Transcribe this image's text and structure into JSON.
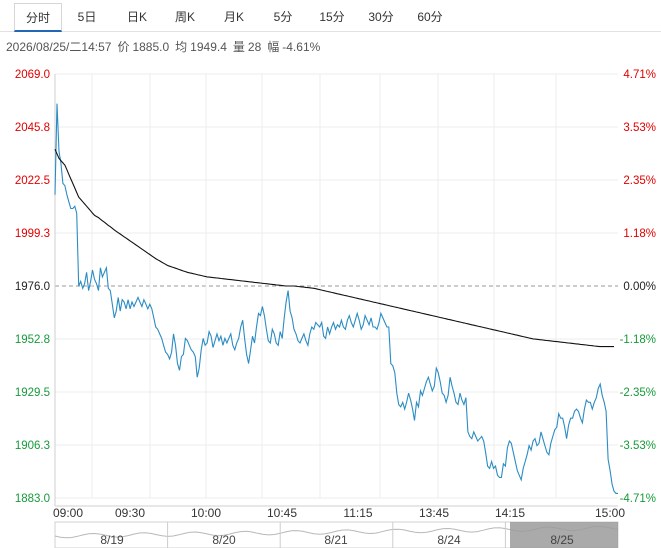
{
  "tabs": [
    {
      "label": "分时"
    },
    {
      "label": "5日"
    },
    {
      "label": "日K"
    },
    {
      "label": "周K"
    },
    {
      "label": "月K"
    },
    {
      "label": "5分"
    },
    {
      "label": "15分"
    },
    {
      "label": "30分"
    },
    {
      "label": "60分"
    }
  ],
  "info": {
    "datetime": "2026/08/25/二14:57",
    "price_label": "价",
    "price": "1885.0",
    "avg_label": "均",
    "avg": "1949.4",
    "vol_label": "量",
    "vol": "28",
    "chg_label": "幅",
    "chg": "-4.61%"
  },
  "colors": {
    "up": "#e00000",
    "down": "#169a3a",
    "flat": "#222222",
    "price_line": "#2b8cc4",
    "avg_line": "#111111",
    "grid": "#ececec",
    "baseline": "#999999"
  },
  "navigator": {
    "labels": [
      "8/19",
      "8/20",
      "8/21",
      "8/24",
      "8/25"
    ],
    "selected": "8/25"
  },
  "chart_data": {
    "type": "line",
    "title": "",
    "prev_close": 1976.0,
    "ylim": [
      1883.0,
      2069.0
    ],
    "y_ticks": [
      "2069.0",
      "2045.8",
      "2022.5",
      "1999.3",
      "1976.0",
      "1952.8",
      "1929.5",
      "1906.3",
      "1883.0"
    ],
    "pct_ticks": [
      "4.71%",
      "3.53%",
      "2.35%",
      "1.18%",
      "0.00%",
      "-1.18%",
      "-2.35%",
      "-3.53%",
      "-4.71%"
    ],
    "x_ticks": [
      "09:00",
      "09:30",
      "10:00",
      "10:45",
      "11:15",
      "13:45",
      "14:15",
      "15:00"
    ],
    "grid": true,
    "series": [
      {
        "name": "",
        "values": [
          2016.0,
          2056.0,
          2035.0,
          2030.0,
          2021.0,
          2020.0,
          2016.0,
          2013.0,
          2010.0,
          2010.0,
          2011.0,
          2008.0,
          1976.0,
          1978.0,
          1975.0,
          1977.0,
          1982.0,
          1974.0,
          1978.0,
          1983.0,
          1979.0,
          1977.0,
          1974.0,
          1984.0,
          1980.0,
          1982.0,
          1984.0,
          1975.0,
          1974.0,
          1968.0,
          1962.0,
          1965.0,
          1971.0,
          1965.0,
          1970.0,
          1969.0,
          1966.0,
          1970.0,
          1966.0,
          1969.0,
          1967.0,
          1969.0,
          1971.0,
          1969.0,
          1967.0,
          1970.0,
          1968.0,
          1966.0,
          1968.0,
          1966.0,
          1962.0,
          1958.0,
          1957.0,
          1955.0,
          1953.0,
          1950.0,
          1947.0,
          1946.0,
          1944.0,
          1947.0,
          1955.0,
          1950.0,
          1942.0,
          1939.0,
          1945.0,
          1946.0,
          1953.0,
          1952.0,
          1950.0,
          1948.0,
          1947.0,
          1945.0,
          1936.0,
          1940.0,
          1948.0,
          1953.0,
          1950.0,
          1951.0,
          1956.0,
          1954.0,
          1949.0,
          1952.0,
          1955.0,
          1952.0,
          1954.0,
          1950.0,
          1953.0,
          1951.0,
          1953.0,
          1955.0,
          1950.0,
          1948.0,
          1951.0,
          1953.0,
          1958.0,
          1961.0,
          1953.0,
          1946.0,
          1942.0,
          1948.0,
          1954.0,
          1951.0,
          1958.0,
          1964.0,
          1963.0,
          1967.0,
          1963.0,
          1957.0,
          1952.0,
          1951.0,
          1957.0,
          1955.0,
          1951.0,
          1950.0,
          1956.0,
          1953.0,
          1962.0,
          1969.0,
          1974.0,
          1965.0,
          1962.0,
          1957.0,
          1955.0,
          1952.0,
          1951.0,
          1953.0,
          1955.0,
          1952.0,
          1950.0,
          1955.0,
          1958.0,
          1957.0,
          1960.0,
          1959.0,
          1958.0,
          1960.0,
          1954.0,
          1953.0,
          1958.0,
          1955.0,
          1958.0,
          1960.0,
          1957.0,
          1959.0,
          1958.0,
          1961.0,
          1958.0,
          1957.0,
          1961.0,
          1963.0,
          1960.0,
          1958.0,
          1961.0,
          1964.0,
          1961.0,
          1957.0,
          1959.0,
          1963.0,
          1961.0,
          1959.0,
          1962.0,
          1958.0,
          1958.0,
          1957.0,
          1960.0,
          1964.0,
          1962.0,
          1960.0,
          1958.0,
          1958.0,
          1942.0,
          1941.0,
          1938.0,
          1929.0,
          1924.0,
          1923.0,
          1925.0,
          1922.0,
          1925.0,
          1929.0,
          1926.0,
          1922.0,
          1917.0,
          1925.0,
          1923.0,
          1930.0,
          1928.0,
          1931.0,
          1934.0,
          1936.0,
          1933.0,
          1930.0,
          1932.0,
          1940.0,
          1938.0,
          1934.0,
          1929.0,
          1928.0,
          1925.0,
          1928.0,
          1936.0,
          1932.0,
          1929.0,
          1925.0,
          1924.0,
          1929.0,
          1926.0,
          1924.0,
          1927.0,
          1912.0,
          1910.0,
          1909.0,
          1912.0,
          1910.0,
          1908.0,
          1909.0,
          1910.0,
          1908.0,
          1903.0,
          1897.0,
          1896.0,
          1899.0,
          1896.0,
          1897.0,
          1893.0,
          1892.0,
          1892.0,
          1898.0,
          1897.0,
          1905.0,
          1908.0,
          1907.0,
          1903.0,
          1899.0,
          1895.0,
          1893.0,
          1891.0,
          1896.0,
          1899.0,
          1902.0,
          1906.0,
          1904.0,
          1908.0,
          1909.0,
          1906.0,
          1907.0,
          1912.0,
          1909.0,
          1906.0,
          1903.0,
          1902.0,
          1907.0,
          1910.0,
          1913.0,
          1914.0,
          1920.0,
          1918.0,
          1918.0,
          1914.0,
          1909.0,
          1915.0,
          1918.0,
          1918.0,
          1921.0,
          1922.0,
          1921.0,
          1918.0,
          1916.0,
          1922.0,
          1926.0,
          1925.0,
          1925.0,
          1922.0,
          1925.0,
          1927.0,
          1931.0,
          1933.0,
          1928.0,
          1925.0,
          1921.0,
          1900.0,
          1895.0,
          1889.0,
          1886.0,
          1885.0,
          1885.0
        ]
      },
      {
        "name": "",
        "values": [
          2036.0,
          2034.0,
          2032.0,
          2031.0,
          2030.0,
          2029.0,
          2027.0,
          2025.0,
          2023.0,
          2021.0,
          2019.0,
          2017.0,
          2015.0,
          2014.0,
          2013.0,
          2012.0,
          2011.0,
          2010.0,
          2009.0,
          2008.0,
          2007.0,
          2006.5,
          2006.0,
          2005.3,
          2004.6,
          2004.0,
          2003.3,
          2002.6,
          2002.0,
          2001.3,
          2000.6,
          2000.0,
          1999.4,
          1998.8,
          1998.2,
          1997.6,
          1997.0,
          1996.4,
          1995.8,
          1995.2,
          1994.6,
          1994.0,
          1993.4,
          1992.8,
          1992.2,
          1991.6,
          1991.0,
          1990.4,
          1989.8,
          1989.2,
          1988.6,
          1988.0,
          1987.5,
          1987.0,
          1986.5,
          1986.0,
          1985.5,
          1985.0,
          1984.7,
          1984.4,
          1984.1,
          1983.8,
          1983.5,
          1983.2,
          1982.9,
          1982.6,
          1982.3,
          1982.0,
          1981.8,
          1981.6,
          1981.4,
          1981.2,
          1981.0,
          1980.8,
          1980.6,
          1980.4,
          1980.2,
          1980.0,
          1979.9,
          1979.8,
          1979.7,
          1979.6,
          1979.5,
          1979.4,
          1979.3,
          1979.2,
          1979.1,
          1979.0,
          1978.9,
          1978.8,
          1978.7,
          1978.6,
          1978.5,
          1978.4,
          1978.3,
          1978.2,
          1978.1,
          1978.0,
          1977.9,
          1977.8,
          1977.7,
          1977.6,
          1977.5,
          1977.4,
          1977.3,
          1977.2,
          1977.1,
          1977.0,
          1976.9,
          1976.8,
          1976.7,
          1976.6,
          1976.5,
          1976.4,
          1976.3,
          1976.2,
          1976.1,
          1976.0,
          1976.0,
          1976.0,
          1976.0,
          1976.0,
          1975.9,
          1975.8,
          1975.7,
          1975.6,
          1975.5,
          1975.4,
          1975.3,
          1975.2,
          1975.1,
          1975.0,
          1974.8,
          1974.6,
          1974.4,
          1974.2,
          1974.0,
          1973.8,
          1973.6,
          1973.4,
          1973.2,
          1973.0,
          1972.8,
          1972.6,
          1972.4,
          1972.2,
          1972.0,
          1971.8,
          1971.6,
          1971.4,
          1971.2,
          1971.0,
          1970.8,
          1970.6,
          1970.4,
          1970.2,
          1970.0,
          1969.8,
          1969.6,
          1969.4,
          1969.2,
          1969.0,
          1968.8,
          1968.6,
          1968.4,
          1968.2,
          1968.0,
          1967.8,
          1967.6,
          1967.4,
          1967.2,
          1967.0,
          1966.8,
          1966.6,
          1966.4,
          1966.2,
          1966.0,
          1965.8,
          1965.6,
          1965.4,
          1965.2,
          1965.0,
          1964.8,
          1964.6,
          1964.4,
          1964.2,
          1964.0,
          1963.8,
          1963.6,
          1963.4,
          1963.2,
          1963.0,
          1962.8,
          1962.6,
          1962.4,
          1962.2,
          1962.0,
          1961.8,
          1961.6,
          1961.4,
          1961.2,
          1961.0,
          1960.8,
          1960.6,
          1960.4,
          1960.2,
          1960.0,
          1959.8,
          1959.6,
          1959.4,
          1959.2,
          1959.0,
          1958.8,
          1958.6,
          1958.4,
          1958.2,
          1958.0,
          1957.8,
          1957.6,
          1957.4,
          1957.2,
          1957.0,
          1956.8,
          1956.6,
          1956.4,
          1956.2,
          1956.0,
          1955.8,
          1955.6,
          1955.4,
          1955.2,
          1955.0,
          1954.8,
          1954.6,
          1954.4,
          1954.2,
          1954.0,
          1953.8,
          1953.6,
          1953.4,
          1953.2,
          1953.0,
          1952.8,
          1952.7,
          1952.6,
          1952.5,
          1952.4,
          1952.3,
          1952.2,
          1952.1,
          1952.0,
          1951.9,
          1951.8,
          1951.7,
          1951.6,
          1951.5,
          1951.4,
          1951.3,
          1951.2,
          1951.1,
          1951.0,
          1950.9,
          1950.8,
          1950.7,
          1950.6,
          1950.5,
          1950.4,
          1950.3,
          1950.2,
          1950.1,
          1950.0,
          1949.9,
          1949.8,
          1949.7,
          1949.6,
          1949.5,
          1949.4,
          1949.4,
          1949.4,
          1949.4,
          1949.4,
          1949.4,
          1949.4,
          1949.4
        ]
      }
    ]
  }
}
